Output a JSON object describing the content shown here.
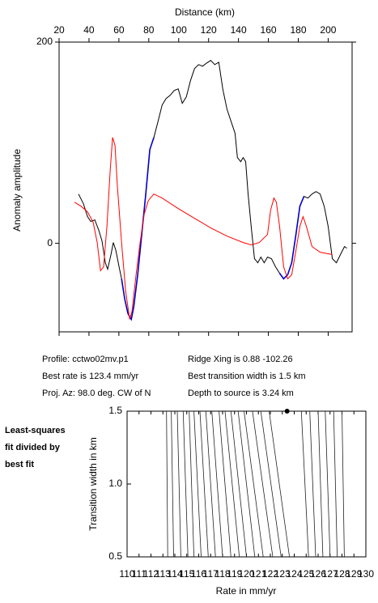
{
  "chart_data": [
    {
      "type": "line",
      "xlabel": "Distance (km)",
      "ylabel": "Anomaly amplitude",
      "xlim": [
        20,
        216
      ],
      "xticks": [
        20,
        40,
        60,
        80,
        100,
        120,
        140,
        160,
        180,
        200
      ],
      "ylim": [
        -88,
        200
      ],
      "yticks": [
        0,
        200
      ],
      "series": [
        {
          "name": "observed",
          "color": "#000000",
          "x": [
            33.0,
            36.3,
            39.0,
            41.2,
            43.9,
            46.6,
            48.7,
            50.9,
            52.5,
            54.7,
            56.3,
            58.0,
            60.1,
            61.8,
            63.9,
            66.1,
            68.3,
            69.9,
            72.6,
            75.3,
            78.0,
            80.7,
            83.4,
            86.2,
            88.9,
            91.6,
            94.3,
            97.0,
            99.7,
            102.4,
            105.1,
            107.9,
            110.6,
            113.3,
            116.0,
            118.7,
            121.4,
            124.1,
            126.8,
            129.5,
            132.3,
            135.0,
            137.7,
            139.3,
            141.5,
            143.1,
            144.8,
            146.4,
            148.5,
            150.7,
            152.9,
            155.0,
            157.2,
            159.4,
            162.1,
            164.8,
            167.5,
            170.2,
            172.9,
            175.6,
            178.4,
            181.1,
            183.8,
            186.5,
            189.2,
            191.9,
            194.6,
            197.3,
            200.0,
            202.8,
            205.5,
            208.2,
            210.9,
            212.5
          ],
          "values": [
            49.0,
            39.3,
            26.5,
            21.7,
            23.3,
            12.8,
            2.4,
            -19.3,
            -25.7,
            -11.2,
            0.8,
            -7.2,
            -23.3,
            -35.3,
            -55.4,
            -69.9,
            -75.5,
            -63.4,
            -31.3,
            8.8,
            49.0,
            93.2,
            105.2,
            121.3,
            137.4,
            143.9,
            147.1,
            151.9,
            153.5,
            139.1,
            145.5,
            161.6,
            173.6,
            177.6,
            176.0,
            179.2,
            181.7,
            177.6,
            180.0,
            153.5,
            133.4,
            121.3,
            109.3,
            85.2,
            81.2,
            85.2,
            81.2,
            49.0,
            16.9,
            -15.3,
            -19.3,
            -13.7,
            -19.3,
            -13.7,
            -15.3,
            -23.3,
            -29.7,
            -35.3,
            -31.3,
            -19.3,
            8.8,
            36.9,
            46.6,
            45.0,
            49.0,
            51.4,
            49.0,
            36.9,
            16.9,
            -15.3,
            -19.3,
            -11.2,
            -3.2,
            -4.8
          ]
        },
        {
          "name": "fit region",
          "color": "#0000cc",
          "x": [
            33.0,
            36.3,
            39.0,
            41.2,
            43.9,
            46.6,
            48.7,
            50.9,
            52.5,
            54.7,
            56.3,
            58.0,
            60.1,
            61.8,
            63.9,
            66.1,
            68.3,
            69.9,
            72.6,
            75.3,
            78.0,
            80.7,
            83.4,
            86.2,
            88.9,
            91.6,
            94.3,
            97.0,
            99.7,
            102.4,
            105.1,
            107.9,
            110.6,
            113.3,
            116.0,
            118.7,
            121.4,
            124.1,
            126.8,
            129.5,
            132.3,
            135.0,
            137.7,
            139.3,
            141.5,
            143.1,
            144.8,
            146.4,
            148.5,
            150.7,
            152.9,
            155.0,
            157.2,
            159.4,
            162.1,
            164.8,
            167.5,
            170.2,
            172.9,
            175.6,
            178.4,
            181.1,
            183.8,
            186.5,
            189.2,
            191.9,
            194.6,
            197.3,
            200.0,
            202.8,
            205.5,
            208.2,
            210.9,
            212.5
          ],
          "values": [
            null,
            null,
            null,
            null,
            null,
            null,
            null,
            null,
            null,
            null,
            null,
            null,
            null,
            -35.3,
            -55.4,
            -69.9,
            -75.5,
            -63.4,
            -31.3,
            8.8,
            49.0,
            93.2,
            105.2,
            null,
            null,
            null,
            null,
            null,
            null,
            null,
            null,
            null,
            null,
            null,
            null,
            null,
            null,
            null,
            null,
            null,
            null,
            null,
            null,
            null,
            null,
            null,
            null,
            null,
            null,
            null,
            null,
            null,
            null,
            null,
            null,
            null,
            -29.7,
            -35.3,
            -31.3,
            -19.3,
            8.8,
            36.9,
            46.6,
            null,
            null,
            null,
            null,
            null,
            null,
            null,
            null,
            null,
            null,
            null
          ]
        },
        {
          "name": "model",
          "color": "#ff0000",
          "x": [
            30.3,
            34.6,
            39.0,
            42.8,
            45.5,
            47.7,
            49.8,
            52.0,
            54.2,
            55.8,
            57.4,
            59.0,
            61.8,
            64.5,
            67.2,
            68.8,
            71.5,
            74.2,
            76.9,
            79.7,
            83.4,
            88.9,
            99.7,
            110.6,
            121.4,
            132.3,
            143.1,
            148.5,
            153.9,
            159.4,
            161.5,
            163.7,
            165.3,
            167.5,
            170.2,
            172.9,
            175.6,
            178.4,
            181.1,
            183.2,
            185.4,
            189.2,
            194.6,
            202.8
          ],
          "values": [
            40.9,
            36.9,
            31.3,
            20.9,
            0.8,
            -27.3,
            -23.3,
            16.9,
            73.1,
            105.2,
            97.2,
            57.0,
            0.8,
            -47.4,
            -75.5,
            -67.5,
            -31.3,
            0.8,
            28.9,
            42.6,
            49.0,
            45.0,
            34.5,
            24.9,
            15.3,
            7.2,
            0.8,
            -1.6,
            0.8,
            8.8,
            32.9,
            45.0,
            40.9,
            16.9,
            -23.3,
            -35.3,
            -31.3,
            -7.2,
            16.9,
            26.5,
            16.9,
            -3.2,
            -8.8,
            -11.2
          ]
        }
      ]
    },
    {
      "type": "contour",
      "xlabel": "Rate in mm/yr",
      "ylabel": "Transition width in km",
      "xlim": [
        110,
        130
      ],
      "xticks": [
        110,
        111,
        112,
        113,
        114,
        115,
        116,
        117,
        118,
        119,
        120,
        121,
        122,
        123,
        124,
        125,
        126,
        127,
        128,
        129,
        130
      ],
      "ylim": [
        0.5,
        1.5
      ],
      "yticks": [
        0.5,
        {
          "value": 1,
          "label": "1.0"
        },
        1.5
      ],
      "point": {
        "x": 123.4,
        "y": 1.5
      },
      "contours": [
        {
          "rate": [
            113.3,
            113.4
          ],
          "width": [
            1.5,
            0.5
          ]
        },
        {
          "rate": [
            113.7,
            113.9
          ],
          "width": [
            1.5,
            0.5
          ]
        },
        {
          "rate": [
            114.2,
            114.5
          ],
          "width": [
            1.5,
            0.5
          ]
        },
        {
          "rate": [
            114.7,
            115.1
          ],
          "width": [
            1.5,
            0.5
          ]
        },
        {
          "rate": [
            115.2,
            115.6
          ],
          "width": [
            1.5,
            0.5
          ]
        },
        {
          "rate": [
            115.6,
            116.2
          ],
          "width": [
            1.5,
            0.5
          ]
        },
        {
          "rate": [
            116.1,
            116.8
          ],
          "width": [
            1.5,
            0.5
          ]
        },
        {
          "rate": [
            116.6,
            117.4
          ],
          "width": [
            1.5,
            0.5
          ]
        },
        {
          "rate": [
            117.1,
            118.0
          ],
          "width": [
            1.5,
            0.5
          ]
        },
        {
          "rate": [
            117.7,
            118.7
          ],
          "width": [
            1.5,
            0.5
          ]
        },
        {
          "rate": [
            118.2,
            119.4
          ],
          "width": [
            1.5,
            0.5
          ]
        },
        {
          "rate": [
            118.7,
            120.0
          ],
          "width": [
            1.5,
            0.5
          ]
        },
        {
          "rate": [
            119.3,
            120.7
          ],
          "width": [
            1.5,
            0.5
          ]
        },
        {
          "rate": [
            119.8,
            121.4
          ],
          "width": [
            1.5,
            0.5
          ]
        },
        {
          "rate": [
            120.5,
            122.2
          ],
          "width": [
            1.5,
            0.5
          ]
        },
        {
          "rate": [
            121.2,
            122.9
          ],
          "width": [
            1.5,
            0.5
          ]
        },
        {
          "rate": [
            121.9,
            123.6
          ],
          "width": [
            1.5,
            0.5
          ]
        },
        {
          "rate": [
            124.6,
            125.2
          ],
          "width": [
            1.5,
            0.5
          ]
        },
        {
          "rate": [
            125.3,
            125.8
          ],
          "width": [
            1.5,
            0.5
          ]
        },
        {
          "rate": [
            126.0,
            126.4
          ],
          "width": [
            1.5,
            0.5
          ]
        },
        {
          "rate": [
            126.6,
            127.0
          ],
          "width": [
            1.5,
            0.5
          ]
        },
        {
          "rate": [
            127.3,
            127.6
          ],
          "width": [
            1.5,
            0.5
          ]
        },
        {
          "rate": [
            128.0,
            128.2
          ],
          "width": [
            1.5,
            0.5
          ]
        }
      ]
    }
  ],
  "info": [
    "Profile: cctwo02mv.p1",
    "Best rate is 123.4 mm/yr",
    "Proj. Az: 98.0 deg. CW of N",
    "Ridge Xing is 0.88 -102.26",
    "Best transition width is 1.5 km",
    "Depth to source is   3.24 km"
  ],
  "note": [
    "Least-squares",
    "fit divided by",
    "best fit"
  ]
}
